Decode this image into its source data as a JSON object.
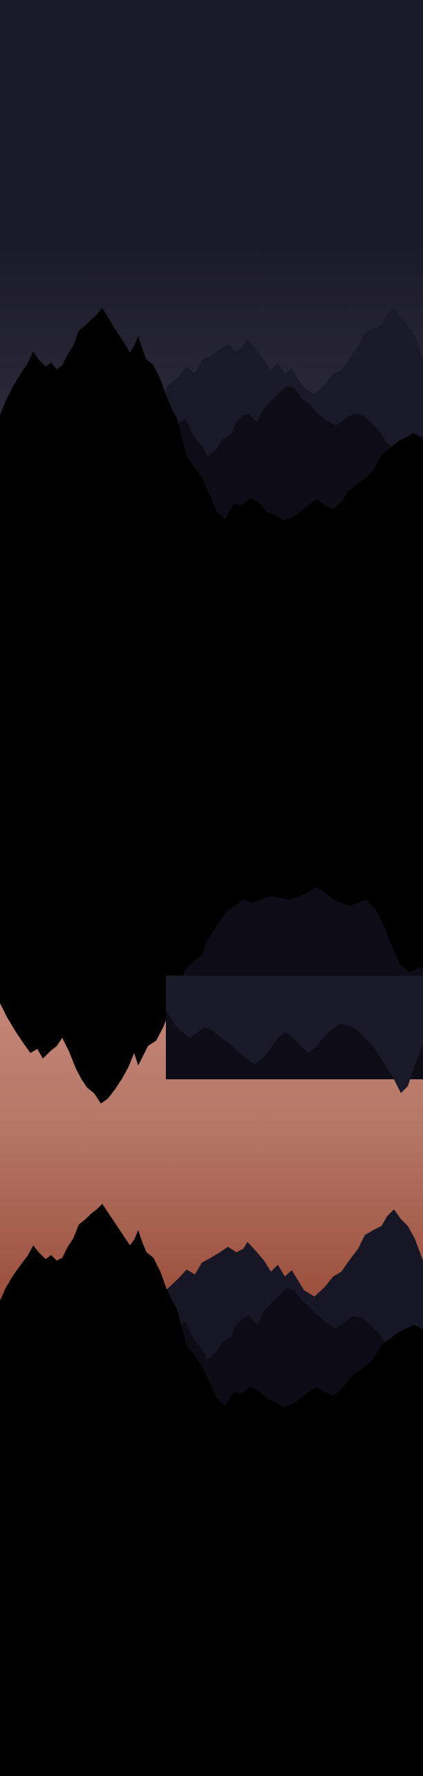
{
  "scene": {
    "description_free": true,
    "palette": {
      "sky_top": "#1b1a28",
      "sky_bottom": "#2d2b3a",
      "ridge_far": "#1a1927",
      "ridge_mid": "#0e0d17",
      "ridge_near": "#000000",
      "glow_top": "#c7877a",
      "glow_mid": "#b47665",
      "glow_bottom": "#9a4c39",
      "lower_ridge_far": "#171624",
      "lower_ridge_mid": "#0d0c16"
    }
  }
}
